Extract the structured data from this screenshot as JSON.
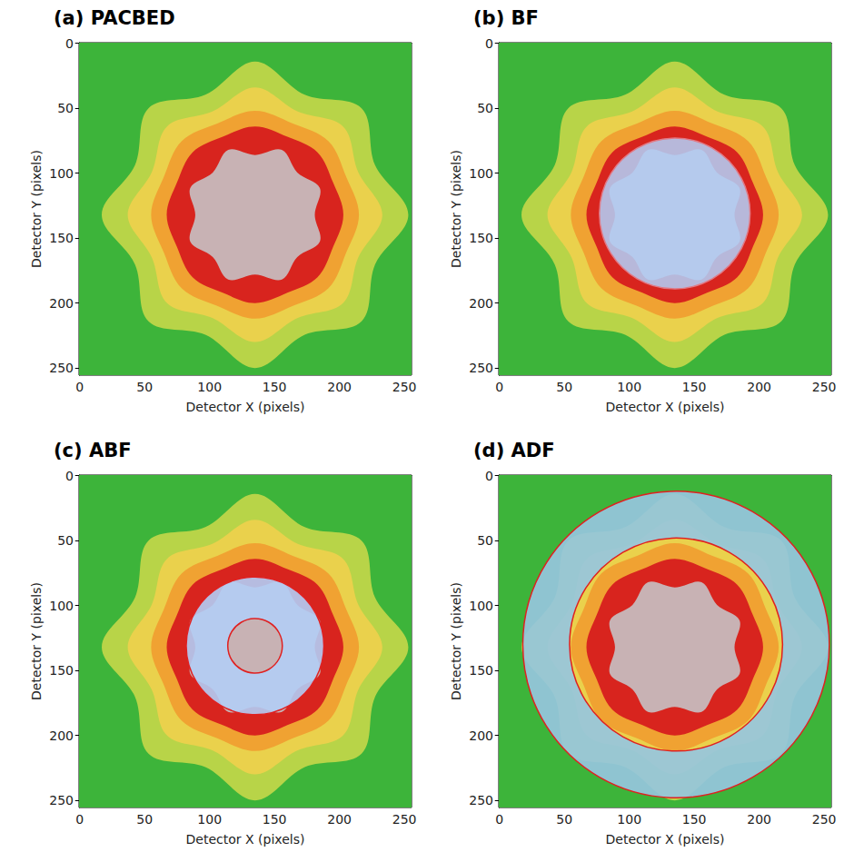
{
  "pattern": {
    "center": [
      135,
      132
    ],
    "background": "#3db43a",
    "angles": [
      0,
      22.5,
      45,
      67.5,
      90,
      112.5,
      135,
      157.5,
      180,
      202.5,
      225,
      247.5,
      270,
      292.5,
      315,
      337.5
    ],
    "regions": [
      {
        "color": "#b8d448",
        "radii": [
          118,
          100,
          116,
          100,
          118,
          100,
          116,
          100,
          118,
          100,
          116,
          100,
          118,
          100,
          116,
          100
        ]
      },
      {
        "color": "#ead14c",
        "radii": [
          98,
          86,
          96,
          86,
          98,
          86,
          96,
          86,
          98,
          86,
          96,
          86,
          98,
          86,
          96,
          86
        ]
      },
      {
        "color": "#f0a232",
        "radii": [
          80,
          76,
          80,
          76,
          80,
          76,
          80,
          76,
          80,
          76,
          80,
          76,
          80,
          76,
          80,
          76
        ]
      },
      {
        "color": "#d8241e",
        "radii": [
          68,
          65,
          68,
          65,
          68,
          65,
          68,
          65,
          68,
          65,
          68,
          65,
          68,
          65,
          68,
          65
        ]
      },
      {
        "color": "#c8b2b4",
        "radii": [
          46,
          54,
          46,
          54,
          46,
          54,
          46,
          54,
          46,
          54,
          46,
          54,
          46,
          54,
          46,
          54
        ]
      }
    ]
  },
  "chart_data": [
    {
      "type": "image",
      "title": "(a) PACBED",
      "x_label": "Detector X (pixels)",
      "y_label": "Detector Y (pixels)",
      "xlim": [
        -0.5,
        255.5
      ],
      "ylim": [
        255.5,
        -0.5
      ],
      "xticks": [
        0,
        50,
        100,
        150,
        200,
        250
      ],
      "yticks": [
        0,
        50,
        100,
        150,
        200,
        250
      ],
      "overlays": []
    },
    {
      "type": "image",
      "title": "(b) BF",
      "x_label": "Detector X (pixels)",
      "y_label": "Detector Y (pixels)",
      "xlim": [
        -0.5,
        255.5
      ],
      "ylim": [
        255.5,
        -0.5
      ],
      "xticks": [
        0,
        50,
        100,
        150,
        200,
        250
      ],
      "yticks": [
        0,
        50,
        100,
        150,
        200,
        250
      ],
      "overlays": [
        {
          "shape": "disk",
          "center": [
            135,
            131
          ],
          "radius": 58
        }
      ]
    },
    {
      "type": "image",
      "title": "(c) ABF",
      "x_label": "Detector X (pixels)",
      "y_label": "Detector Y (pixels)",
      "xlim": [
        -0.5,
        255.5
      ],
      "ylim": [
        255.5,
        -0.5
      ],
      "xticks": [
        0,
        50,
        100,
        150,
        200,
        250
      ],
      "yticks": [
        0,
        50,
        100,
        150,
        200,
        250
      ],
      "overlays": [
        {
          "shape": "annulus",
          "center": [
            135,
            131
          ],
          "inner_radius": 21,
          "outer_radius": 53
        }
      ]
    },
    {
      "type": "image",
      "title": "(d) ADF",
      "x_label": "Detector X (pixels)",
      "y_label": "Detector Y (pixels)",
      "xlim": [
        -0.5,
        255.5
      ],
      "ylim": [
        255.5,
        -0.5
      ],
      "xticks": [
        0,
        50,
        100,
        150,
        200,
        250
      ],
      "yticks": [
        0,
        50,
        100,
        150,
        200,
        250
      ],
      "overlays": [
        {
          "shape": "annulus",
          "center": [
            136,
            130
          ],
          "inner_radius": 82,
          "outer_radius": 118
        }
      ]
    }
  ]
}
